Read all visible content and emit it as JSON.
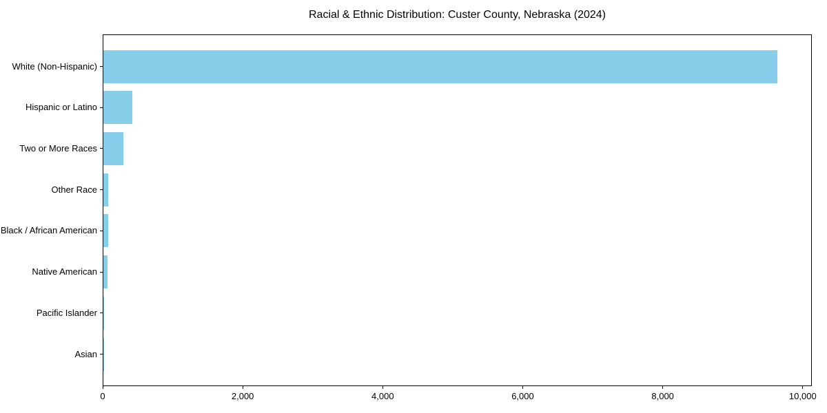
{
  "chart_data": {
    "type": "bar",
    "orientation": "horizontal",
    "title": "Racial & Ethnic Distribution: Custer County, Nebraska (2024)",
    "categories": [
      "White (Non-Hispanic)",
      "Hispanic or Latino",
      "Two or More Races",
      "Other Race",
      "Black / African American",
      "Native American",
      "Pacific Islander",
      "Asian"
    ],
    "values": [
      9630,
      415,
      285,
      71,
      66,
      59,
      4,
      2
    ],
    "xlabel": "",
    "ylabel": "",
    "xlim": [
      0,
      10110
    ],
    "xticks": [
      {
        "value": 0,
        "label": "0"
      },
      {
        "value": 2000,
        "label": "2,000"
      },
      {
        "value": 4000,
        "label": "4,000"
      },
      {
        "value": 6000,
        "label": "6,000"
      },
      {
        "value": 8000,
        "label": "8,000"
      },
      {
        "value": 10000,
        "label": "10,000"
      }
    ],
    "bar_color": "#87CEEB",
    "text_color": "#000000",
    "grid": false,
    "legend": null
  }
}
